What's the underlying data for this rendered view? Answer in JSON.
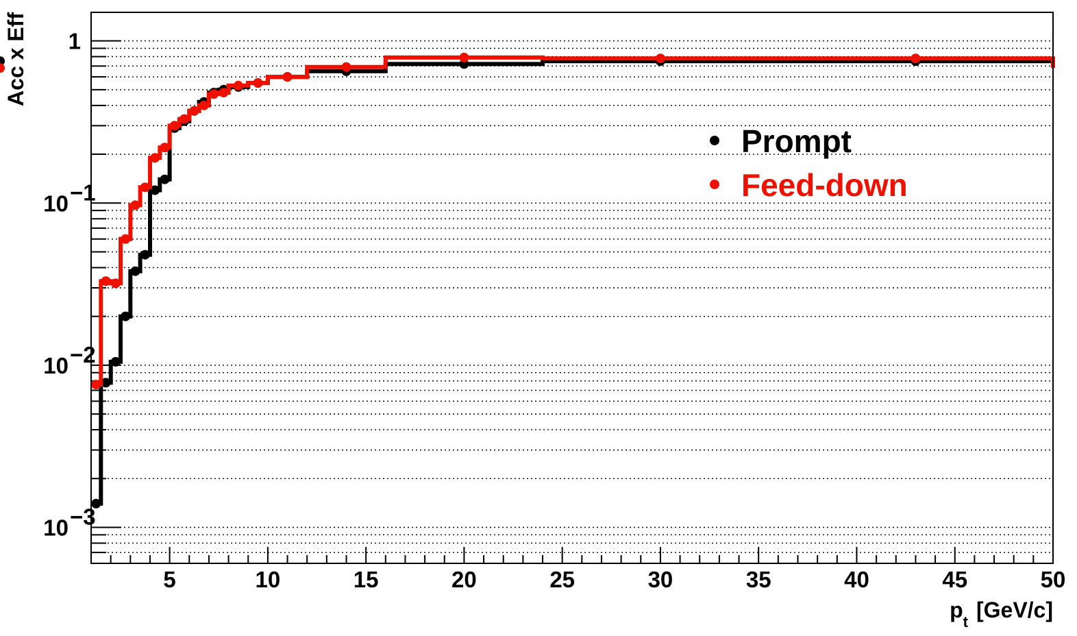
{
  "chart_data": {
    "type": "line",
    "xlabel": "p",
    "xlabel_sub": "t",
    "xlabel_unit": "[GeV/c]",
    "ylabel": "Acc x Eff",
    "xlim": [
      1,
      50
    ],
    "ylim": [
      0.0006,
      1.5
    ],
    "yscale": "log",
    "grid": "horizontal dotted",
    "legend_position": "right-center",
    "x_ticks": [
      5,
      10,
      15,
      20,
      25,
      30,
      35,
      40,
      45,
      50
    ],
    "x_tick_labels": [
      "5",
      "10",
      "15",
      "20",
      "25",
      "30",
      "35",
      "40",
      "45",
      "50"
    ],
    "y_ticks": [
      {
        "value": 1,
        "base": "1",
        "exp": ""
      },
      {
        "value": 0.1,
        "base": "10",
        "exp": "−1"
      },
      {
        "value": 0.01,
        "base": "10",
        "exp": "−2"
      },
      {
        "value": 0.001,
        "base": "10",
        "exp": "−3"
      }
    ],
    "bin_edges": [
      1,
      1.5,
      2,
      2.5,
      3,
      3.5,
      4,
      4.5,
      5,
      5.5,
      6,
      6.5,
      7,
      7.5,
      8,
      9,
      10,
      12,
      16,
      24,
      36,
      50
    ],
    "series": [
      {
        "name": "Prompt",
        "color": "#000000",
        "values": [
          0.0014,
          0.0078,
          0.0105,
          0.02,
          0.038,
          0.048,
          0.12,
          0.14,
          0.29,
          0.32,
          0.37,
          0.42,
          0.48,
          0.5,
          0.52,
          0.55,
          0.6,
          0.65,
          0.72,
          0.75,
          0.75,
          0.75
        ]
      },
      {
        "name": "Feed-down",
        "color": "#ee1100",
        "values": [
          0.0076,
          0.033,
          0.032,
          0.06,
          0.097,
          0.125,
          0.19,
          0.22,
          0.3,
          0.33,
          0.37,
          0.4,
          0.47,
          0.48,
          0.53,
          0.55,
          0.6,
          0.69,
          0.79,
          0.78,
          0.78,
          0.68
        ]
      }
    ]
  }
}
